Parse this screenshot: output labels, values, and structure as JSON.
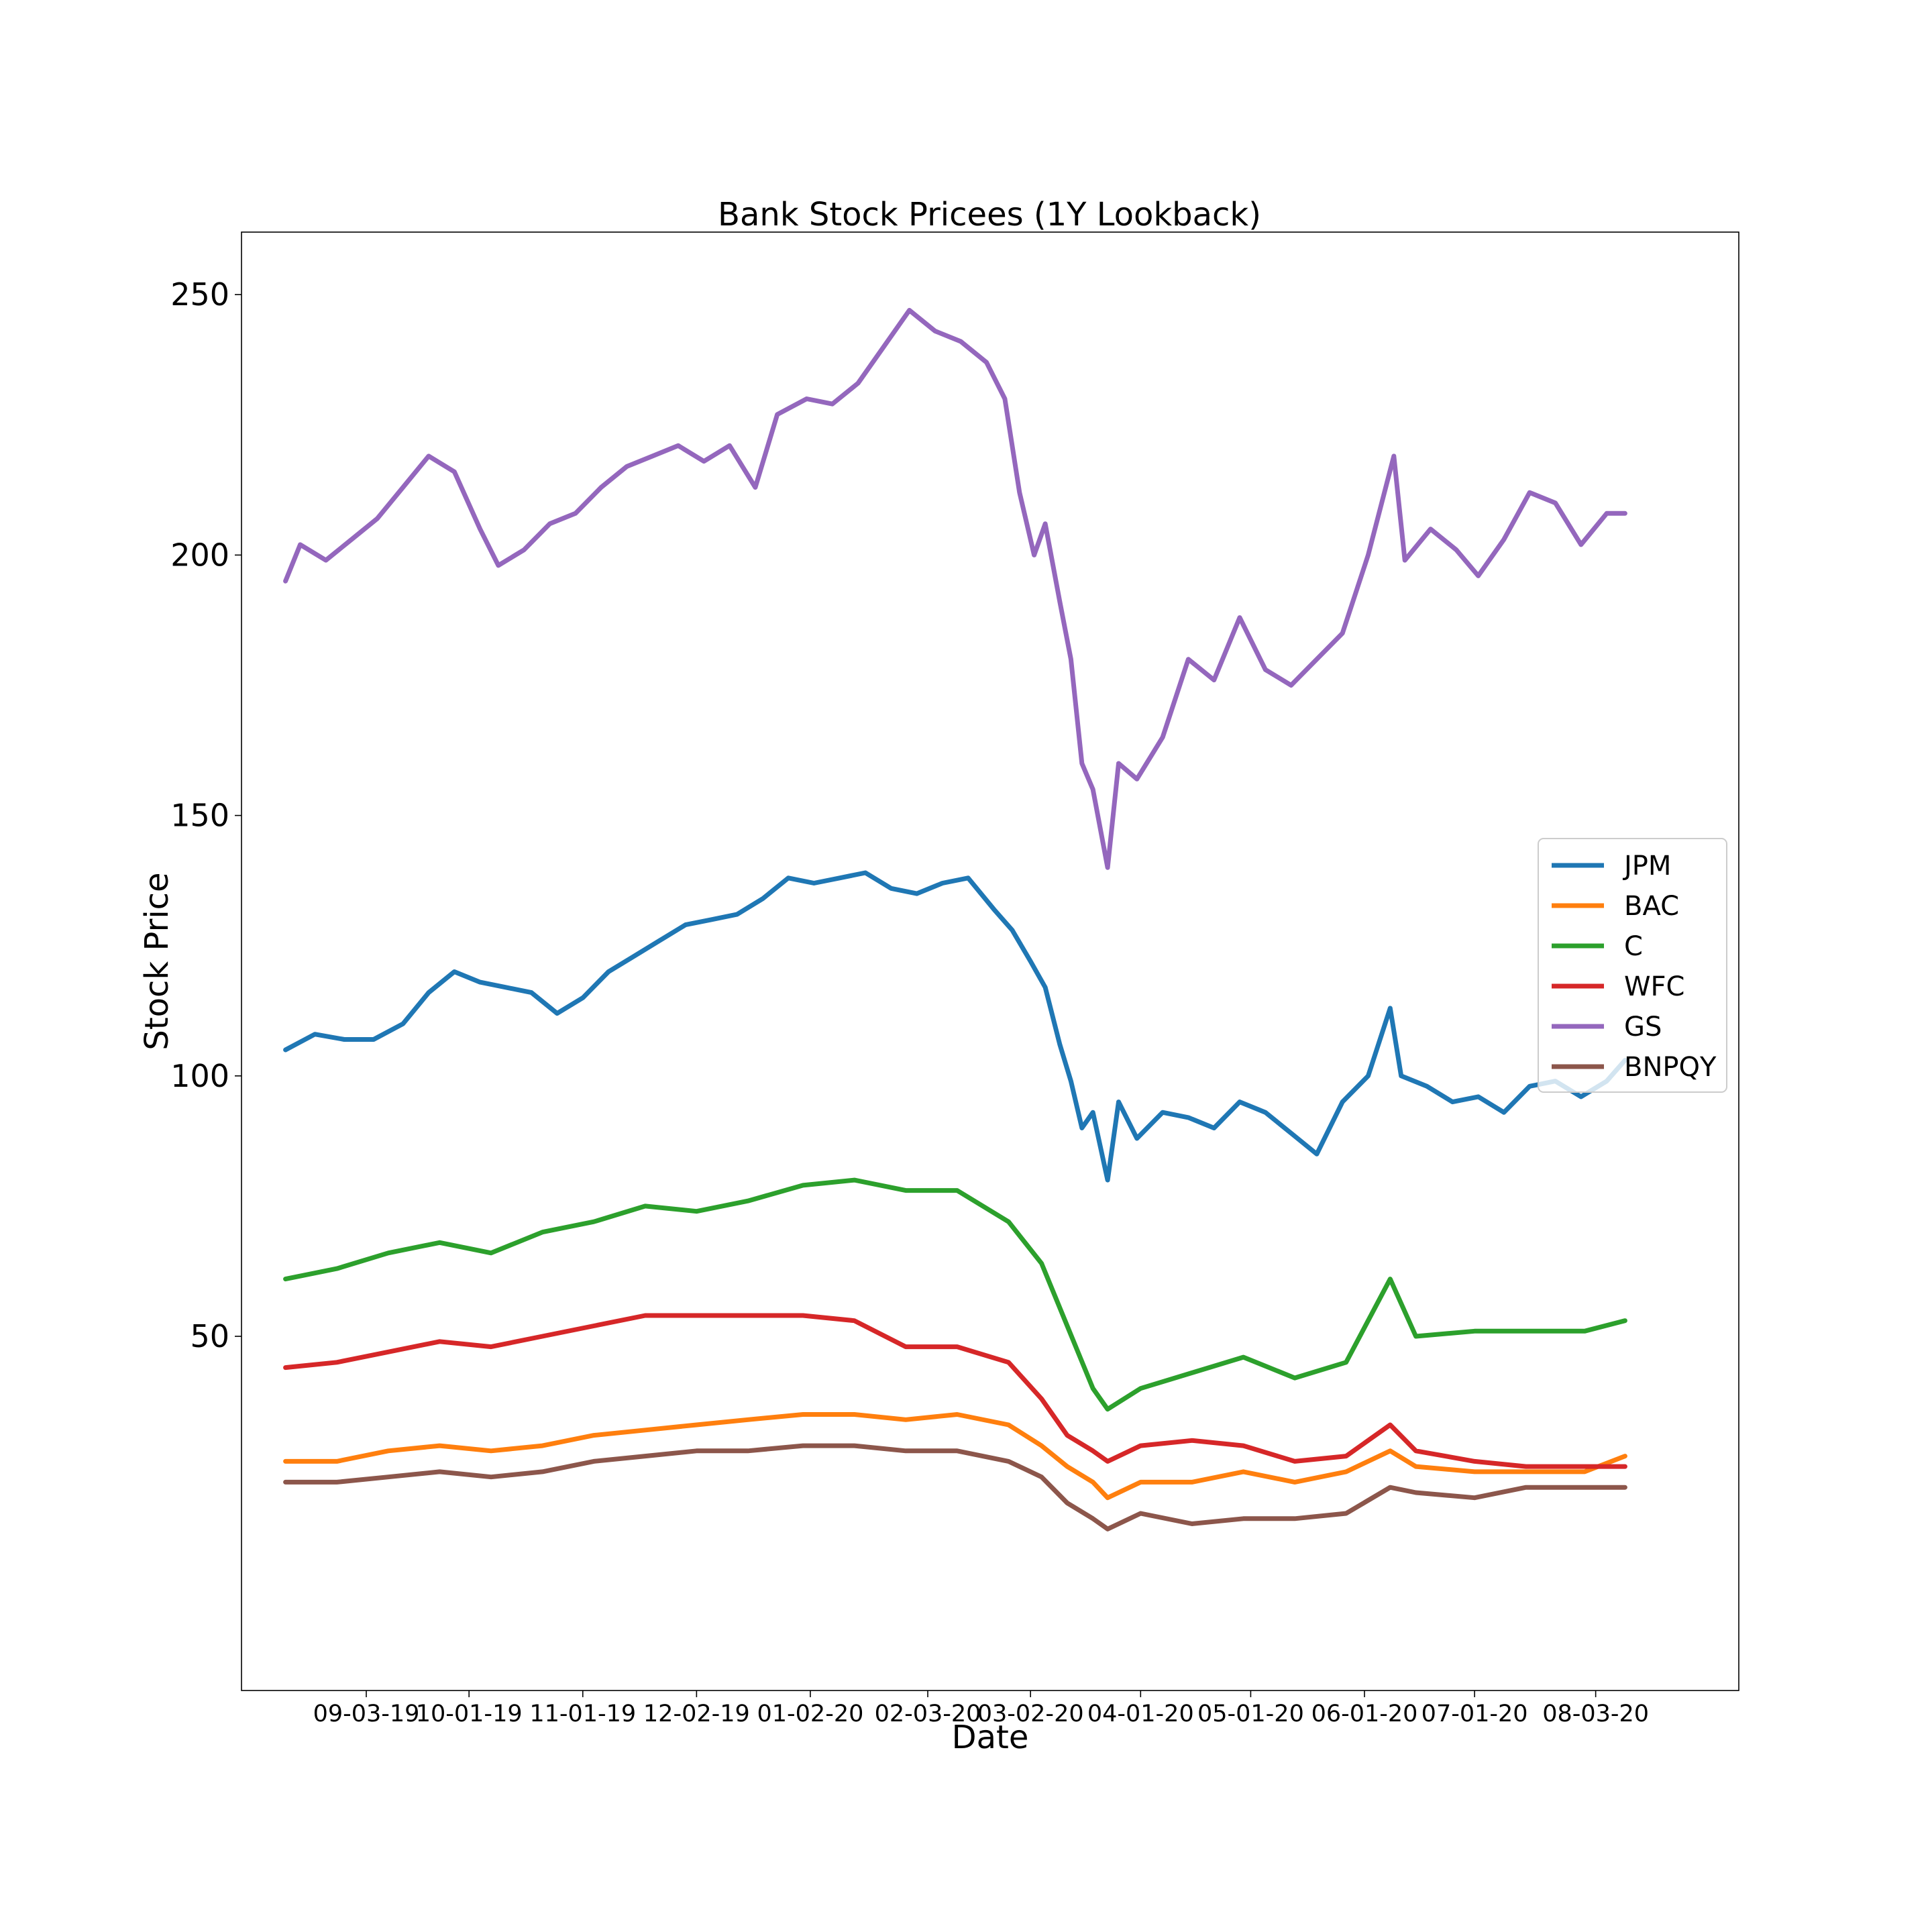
{
  "chart_data": {
    "type": "line",
    "title": "Bank Stock Pricees (1Y Lookback)",
    "xlabel": "Date",
    "ylabel": "Stock Price",
    "x_start": "2020-08-11",
    "xlim": [
      "2019-07-31",
      "2020-09-11"
    ],
    "ylim": [
      -18,
      262
    ],
    "x_ticks": [
      {
        "date": "2019-09-03",
        "label": "09-03-19"
      },
      {
        "date": "2019-10-01",
        "label": "10-01-19"
      },
      {
        "date": "2019-11-01",
        "label": "11-01-19"
      },
      {
        "date": "2019-12-02",
        "label": "12-02-19"
      },
      {
        "date": "2020-01-02",
        "label": "01-02-20"
      },
      {
        "date": "2020-02-03",
        "label": "02-03-20"
      },
      {
        "date": "2020-03-02",
        "label": "03-02-20"
      },
      {
        "date": "2020-04-01",
        "label": "04-01-20"
      },
      {
        "date": "2020-05-01",
        "label": "05-01-20"
      },
      {
        "date": "2020-06-01",
        "label": "06-01-20"
      },
      {
        "date": "2020-07-01",
        "label": "07-01-20"
      },
      {
        "date": "2020-08-03",
        "label": "08-03-20"
      }
    ],
    "y_ticks": [
      50,
      100,
      150,
      200,
      250
    ],
    "grid": false,
    "legend_position": "center-right",
    "series": [
      {
        "name": "JPM",
        "color": "#1f77b4",
        "points": [
          [
            "2019-08-12",
            105
          ],
          [
            "2019-08-20",
            108
          ],
          [
            "2019-08-28",
            107
          ],
          [
            "2019-09-05",
            107
          ],
          [
            "2019-09-13",
            110
          ],
          [
            "2019-09-20",
            116
          ],
          [
            "2019-09-27",
            120
          ],
          [
            "2019-10-04",
            118
          ],
          [
            "2019-10-11",
            117
          ],
          [
            "2019-10-18",
            116
          ],
          [
            "2019-10-25",
            112
          ],
          [
            "2019-11-01",
            115
          ],
          [
            "2019-11-08",
            120
          ],
          [
            "2019-11-15",
            123
          ],
          [
            "2019-11-22",
            126
          ],
          [
            "2019-11-29",
            129
          ],
          [
            "2019-12-06",
            130
          ],
          [
            "2019-12-13",
            131
          ],
          [
            "2019-12-20",
            134
          ],
          [
            "2019-12-27",
            138
          ],
          [
            "2020-01-03",
            137
          ],
          [
            "2020-01-10",
            138
          ],
          [
            "2020-01-17",
            139
          ],
          [
            "2020-01-24",
            136
          ],
          [
            "2020-01-31",
            135
          ],
          [
            "2020-02-07",
            137
          ],
          [
            "2020-02-14",
            138
          ],
          [
            "2020-02-21",
            132
          ],
          [
            "2020-02-26",
            128
          ],
          [
            "2020-03-02",
            122
          ],
          [
            "2020-03-06",
            117
          ],
          [
            "2020-03-10",
            106
          ],
          [
            "2020-03-13",
            99
          ],
          [
            "2020-03-16",
            90
          ],
          [
            "2020-03-19",
            93
          ],
          [
            "2020-03-23",
            80
          ],
          [
            "2020-03-26",
            95
          ],
          [
            "2020-03-31",
            88
          ],
          [
            "2020-04-07",
            93
          ],
          [
            "2020-04-14",
            92
          ],
          [
            "2020-04-21",
            90
          ],
          [
            "2020-04-28",
            95
          ],
          [
            "2020-05-05",
            93
          ],
          [
            "2020-05-12",
            89
          ],
          [
            "2020-05-19",
            85
          ],
          [
            "2020-05-26",
            95
          ],
          [
            "2020-06-02",
            100
          ],
          [
            "2020-06-08",
            113
          ],
          [
            "2020-06-11",
            100
          ],
          [
            "2020-06-18",
            98
          ],
          [
            "2020-06-25",
            95
          ],
          [
            "2020-07-02",
            96
          ],
          [
            "2020-07-09",
            93
          ],
          [
            "2020-07-16",
            98
          ],
          [
            "2020-07-23",
            99
          ],
          [
            "2020-07-30",
            96
          ],
          [
            "2020-08-06",
            99
          ],
          [
            "2020-08-11",
            103
          ]
        ]
      },
      {
        "name": "BAC",
        "color": "#ff7f0e",
        "points": [
          [
            "2019-08-12",
            26
          ],
          [
            "2019-08-26",
            26
          ],
          [
            "2019-09-09",
            28
          ],
          [
            "2019-09-23",
            29
          ],
          [
            "2019-10-07",
            28
          ],
          [
            "2019-10-21",
            29
          ],
          [
            "2019-11-04",
            31
          ],
          [
            "2019-11-18",
            32
          ],
          [
            "2019-12-02",
            33
          ],
          [
            "2019-12-16",
            34
          ],
          [
            "2019-12-31",
            35
          ],
          [
            "2020-01-14",
            35
          ],
          [
            "2020-01-28",
            34
          ],
          [
            "2020-02-11",
            35
          ],
          [
            "2020-02-25",
            33
          ],
          [
            "2020-03-05",
            29
          ],
          [
            "2020-03-12",
            25
          ],
          [
            "2020-03-19",
            22
          ],
          [
            "2020-03-23",
            19
          ],
          [
            "2020-04-01",
            22
          ],
          [
            "2020-04-15",
            22
          ],
          [
            "2020-04-29",
            24
          ],
          [
            "2020-05-13",
            22
          ],
          [
            "2020-05-27",
            24
          ],
          [
            "2020-06-08",
            28
          ],
          [
            "2020-06-15",
            25
          ],
          [
            "2020-07-01",
            24
          ],
          [
            "2020-07-15",
            24
          ],
          [
            "2020-07-31",
            24
          ],
          [
            "2020-08-11",
            27
          ]
        ]
      },
      {
        "name": "C",
        "color": "#2ca02c",
        "points": [
          [
            "2019-08-12",
            61
          ],
          [
            "2019-08-26",
            63
          ],
          [
            "2019-09-09",
            66
          ],
          [
            "2019-09-23",
            68
          ],
          [
            "2019-10-07",
            66
          ],
          [
            "2019-10-21",
            70
          ],
          [
            "2019-11-04",
            72
          ],
          [
            "2019-11-18",
            75
          ],
          [
            "2019-12-02",
            74
          ],
          [
            "2019-12-16",
            76
          ],
          [
            "2019-12-31",
            79
          ],
          [
            "2020-01-14",
            80
          ],
          [
            "2020-01-28",
            78
          ],
          [
            "2020-02-11",
            78
          ],
          [
            "2020-02-25",
            72
          ],
          [
            "2020-03-05",
            64
          ],
          [
            "2020-03-12",
            52
          ],
          [
            "2020-03-19",
            40
          ],
          [
            "2020-03-23",
            36
          ],
          [
            "2020-04-01",
            40
          ],
          [
            "2020-04-15",
            43
          ],
          [
            "2020-04-29",
            46
          ],
          [
            "2020-05-13",
            42
          ],
          [
            "2020-05-27",
            45
          ],
          [
            "2020-06-08",
            61
          ],
          [
            "2020-06-15",
            50
          ],
          [
            "2020-07-01",
            51
          ],
          [
            "2020-07-15",
            51
          ],
          [
            "2020-07-31",
            51
          ],
          [
            "2020-08-11",
            53
          ]
        ]
      },
      {
        "name": "WFC",
        "color": "#d62728",
        "points": [
          [
            "2019-08-12",
            44
          ],
          [
            "2019-08-26",
            45
          ],
          [
            "2019-09-09",
            47
          ],
          [
            "2019-09-23",
            49
          ],
          [
            "2019-10-07",
            48
          ],
          [
            "2019-10-21",
            50
          ],
          [
            "2019-11-04",
            52
          ],
          [
            "2019-11-18",
            54
          ],
          [
            "2019-12-02",
            54
          ],
          [
            "2019-12-16",
            54
          ],
          [
            "2019-12-31",
            54
          ],
          [
            "2020-01-14",
            53
          ],
          [
            "2020-01-28",
            48
          ],
          [
            "2020-02-11",
            48
          ],
          [
            "2020-02-25",
            45
          ],
          [
            "2020-03-05",
            38
          ],
          [
            "2020-03-12",
            31
          ],
          [
            "2020-03-19",
            28
          ],
          [
            "2020-03-23",
            26
          ],
          [
            "2020-04-01",
            29
          ],
          [
            "2020-04-15",
            30
          ],
          [
            "2020-04-29",
            29
          ],
          [
            "2020-05-13",
            26
          ],
          [
            "2020-05-27",
            27
          ],
          [
            "2020-06-08",
            33
          ],
          [
            "2020-06-15",
            28
          ],
          [
            "2020-07-01",
            26
          ],
          [
            "2020-07-15",
            25
          ],
          [
            "2020-07-31",
            25
          ],
          [
            "2020-08-11",
            25
          ]
        ]
      },
      {
        "name": "GS",
        "color": "#9467bd",
        "points": [
          [
            "2019-08-12",
            195
          ],
          [
            "2019-08-16",
            202
          ],
          [
            "2019-08-23",
            199
          ],
          [
            "2019-08-30",
            203
          ],
          [
            "2019-09-06",
            207
          ],
          [
            "2019-09-13",
            213
          ],
          [
            "2019-09-20",
            219
          ],
          [
            "2019-09-27",
            216
          ],
          [
            "2019-10-04",
            205
          ],
          [
            "2019-10-09",
            198
          ],
          [
            "2019-10-16",
            201
          ],
          [
            "2019-10-23",
            206
          ],
          [
            "2019-10-30",
            208
          ],
          [
            "2019-11-06",
            213
          ],
          [
            "2019-11-13",
            217
          ],
          [
            "2019-11-20",
            219
          ],
          [
            "2019-11-27",
            221
          ],
          [
            "2019-12-04",
            218
          ],
          [
            "2019-12-11",
            221
          ],
          [
            "2019-12-18",
            213
          ],
          [
            "2019-12-24",
            227
          ],
          [
            "2020-01-01",
            230
          ],
          [
            "2020-01-08",
            229
          ],
          [
            "2020-01-15",
            233
          ],
          [
            "2020-01-22",
            240
          ],
          [
            "2020-01-29",
            247
          ],
          [
            "2020-02-05",
            243
          ],
          [
            "2020-02-12",
            241
          ],
          [
            "2020-02-19",
            237
          ],
          [
            "2020-02-24",
            230
          ],
          [
            "2020-02-28",
            212
          ],
          [
            "2020-03-03",
            200
          ],
          [
            "2020-03-06",
            206
          ],
          [
            "2020-03-10",
            191
          ],
          [
            "2020-03-13",
            180
          ],
          [
            "2020-03-16",
            160
          ],
          [
            "2020-03-19",
            155
          ],
          [
            "2020-03-23",
            140
          ],
          [
            "2020-03-26",
            160
          ],
          [
            "2020-03-31",
            157
          ],
          [
            "2020-04-07",
            165
          ],
          [
            "2020-04-14",
            180
          ],
          [
            "2020-04-21",
            176
          ],
          [
            "2020-04-28",
            188
          ],
          [
            "2020-05-05",
            178
          ],
          [
            "2020-05-12",
            175
          ],
          [
            "2020-05-19",
            180
          ],
          [
            "2020-05-26",
            185
          ],
          [
            "2020-06-02",
            200
          ],
          [
            "2020-06-09",
            219
          ],
          [
            "2020-06-12",
            199
          ],
          [
            "2020-06-19",
            205
          ],
          [
            "2020-06-26",
            201
          ],
          [
            "2020-07-02",
            196
          ],
          [
            "2020-07-09",
            203
          ],
          [
            "2020-07-16",
            212
          ],
          [
            "2020-07-23",
            210
          ],
          [
            "2020-07-30",
            202
          ],
          [
            "2020-08-06",
            208
          ],
          [
            "2020-08-11",
            208
          ]
        ]
      },
      {
        "name": "BNPQY",
        "color": "#8c564b",
        "points": [
          [
            "2019-08-12",
            22
          ],
          [
            "2019-08-26",
            22
          ],
          [
            "2019-09-09",
            23
          ],
          [
            "2019-09-23",
            24
          ],
          [
            "2019-10-07",
            23
          ],
          [
            "2019-10-21",
            24
          ],
          [
            "2019-11-04",
            26
          ],
          [
            "2019-11-18",
            27
          ],
          [
            "2019-12-02",
            28
          ],
          [
            "2019-12-16",
            28
          ],
          [
            "2019-12-31",
            29
          ],
          [
            "2020-01-14",
            29
          ],
          [
            "2020-01-28",
            28
          ],
          [
            "2020-02-11",
            28
          ],
          [
            "2020-02-25",
            26
          ],
          [
            "2020-03-05",
            23
          ],
          [
            "2020-03-12",
            18
          ],
          [
            "2020-03-19",
            15
          ],
          [
            "2020-03-23",
            13
          ],
          [
            "2020-04-01",
            16
          ],
          [
            "2020-04-15",
            14
          ],
          [
            "2020-04-29",
            15
          ],
          [
            "2020-05-13",
            15
          ],
          [
            "2020-05-27",
            16
          ],
          [
            "2020-06-08",
            21
          ],
          [
            "2020-06-15",
            20
          ],
          [
            "2020-07-01",
            19
          ],
          [
            "2020-07-15",
            21
          ],
          [
            "2020-07-31",
            21
          ],
          [
            "2020-08-11",
            21
          ]
        ]
      }
    ]
  }
}
